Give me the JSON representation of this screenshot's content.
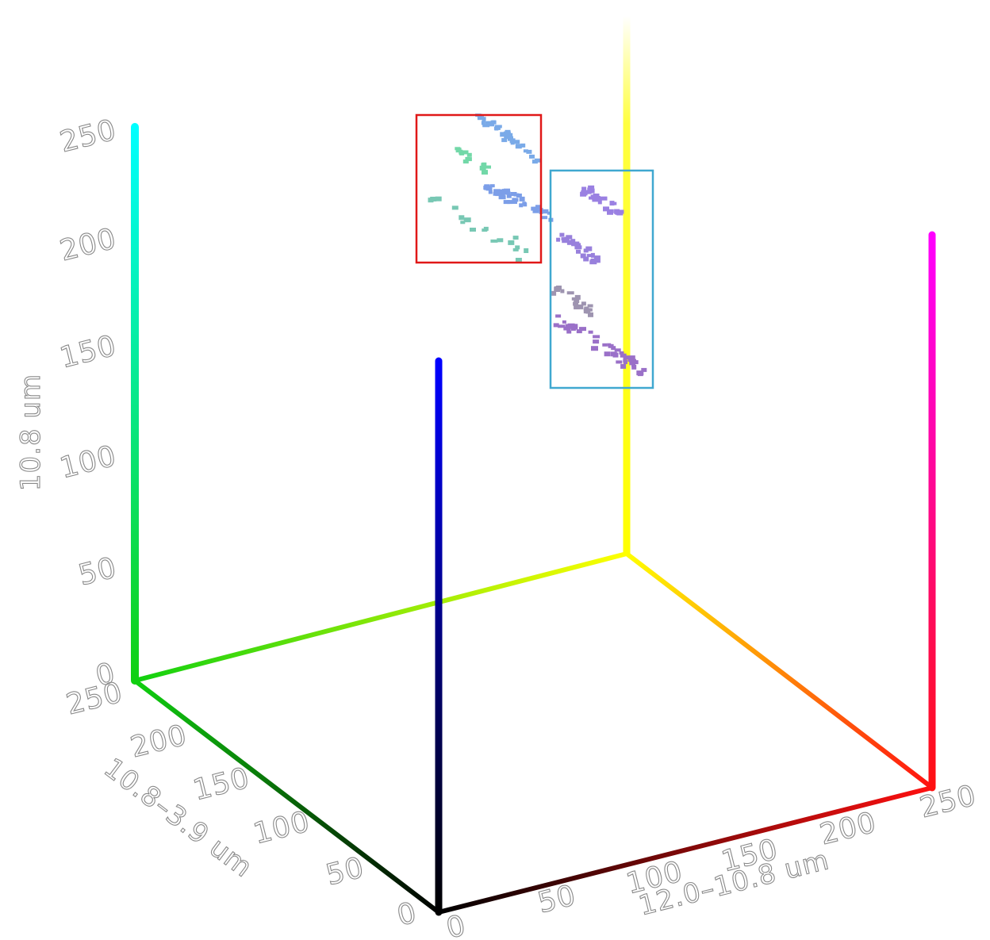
{
  "chart_data": {
    "type": "scatter",
    "subtype": "3d-rgb-color-cube",
    "title": "",
    "axes": {
      "x": {
        "label": "12.0–10.8 um",
        "range": [
          0,
          250
        ],
        "ticks": [
          "0",
          "50",
          "100",
          "150",
          "200",
          "250"
        ]
      },
      "y": {
        "label": "10.8–3.9 um",
        "range": [
          0,
          250
        ],
        "ticks": [
          "0",
          "50",
          "100",
          "150",
          "200",
          "250"
        ]
      },
      "z": {
        "label": "10.8 um",
        "range": [
          0,
          250
        ],
        "ticks": [
          "0",
          "50",
          "100",
          "150",
          "200",
          "250"
        ]
      }
    },
    "cube_edge_colors": {
      "origin": "#000000",
      "x_max": "#ff1010",
      "y_max": "#10d010",
      "z_max": "#0000ff",
      "xy_max": "#ffff00",
      "xz_max": "#ff00ff",
      "yz_max": "#00ffff"
    },
    "grid": false,
    "legend": "none",
    "highlight_boxes": [
      {
        "color": "#e01818"
      },
      {
        "color": "#40a8d0"
      }
    ],
    "clusters": [
      {
        "color": "#7aaae8",
        "count": 34
      },
      {
        "color": "#72d8a8",
        "count": 14
      },
      {
        "color": "#7c9ee8",
        "count": 40
      },
      {
        "color": "#78c8b4",
        "count": 18
      },
      {
        "color": "#9a80e2",
        "count": 28
      },
      {
        "color": "#9880dc",
        "count": 28
      },
      {
        "color": "#9e94b0",
        "count": 22
      },
      {
        "color": "#9a70c8",
        "count": 44
      }
    ]
  }
}
